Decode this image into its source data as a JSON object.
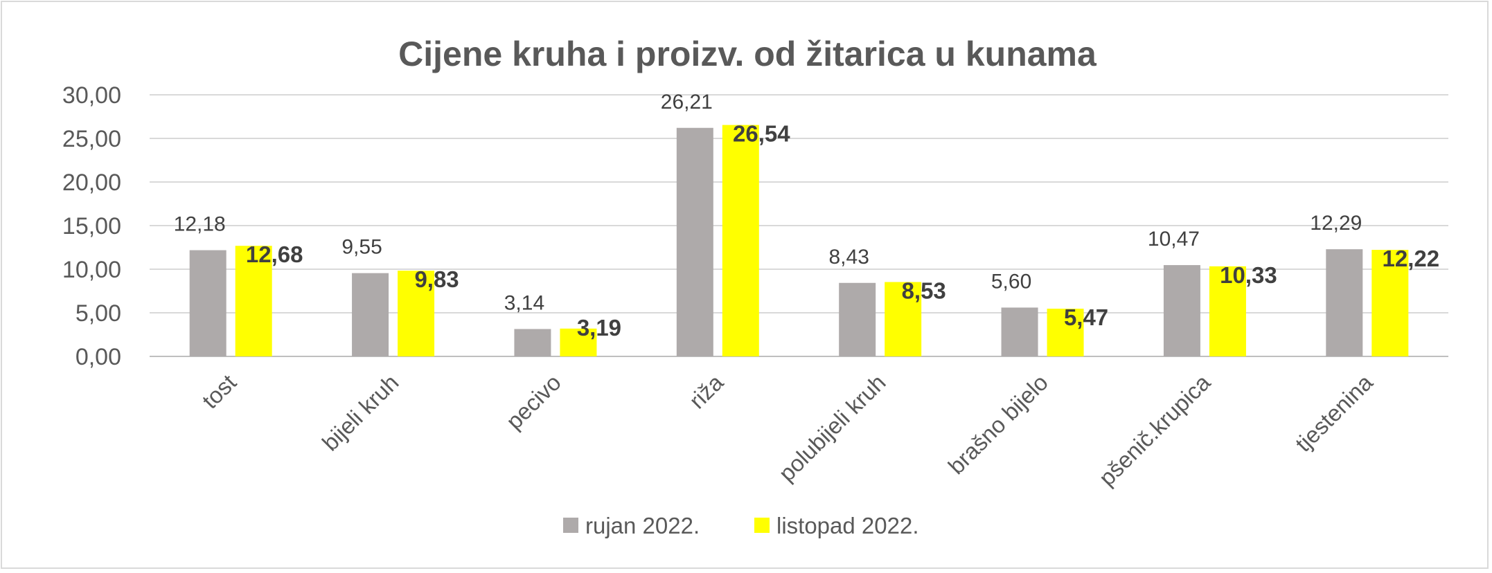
{
  "chart_data": {
    "type": "bar",
    "title": "Cijene kruha i proizv. od žitarica u kunama",
    "xlabel": "",
    "ylabel": "",
    "categories": [
      "tost",
      "bijeli kruh",
      "pecivo",
      "riža",
      "polubijeli kruh",
      "brašno bijelo",
      "pšenič.krupica",
      "tjestenina"
    ],
    "series": [
      {
        "name": "rujan 2022.",
        "color": "#aeaaaa",
        "values": [
          12.18,
          9.55,
          3.14,
          26.21,
          8.43,
          5.6,
          10.47,
          12.29
        ],
        "labels": [
          "12,18",
          "9,55",
          "3,14",
          "26,21",
          "8,43",
          "5,60",
          "10,47",
          "12,29"
        ]
      },
      {
        "name": "listopad 2022.",
        "color": "#ffff00",
        "values": [
          12.68,
          9.83,
          3.19,
          26.54,
          8.53,
          5.47,
          10.33,
          12.22
        ],
        "labels": [
          "12,68",
          "9,83",
          "3,19",
          "26,54",
          "8,53",
          "5,47",
          "10,33",
          "12,22"
        ]
      }
    ],
    "ylim": [
      0,
      30
    ],
    "yticks": [
      0,
      5,
      10,
      15,
      20,
      25,
      30
    ],
    "ytick_labels": [
      "0,00",
      "5,00",
      "10,00",
      "15,00",
      "20,00",
      "25,00",
      "30,00"
    ],
    "grid": true,
    "legend_position": "bottom"
  }
}
